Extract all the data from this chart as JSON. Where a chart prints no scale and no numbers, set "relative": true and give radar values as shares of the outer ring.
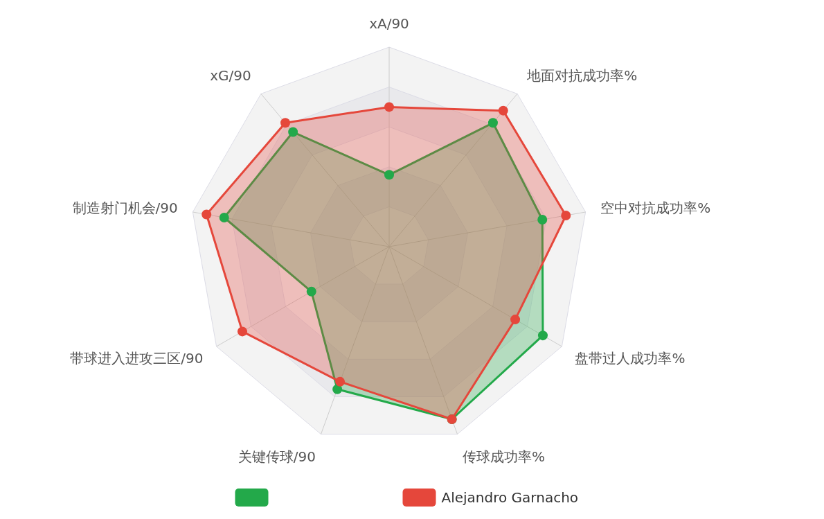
{
  "chart_data": {
    "type": "radar",
    "relative": true,
    "grid": true,
    "legend": "bottom",
    "marker": "circle",
    "categories": [
      "xA/90",
      "地面对抗成功率%",
      "空中对抗成功率%",
      "盘带过人成功率%",
      "传球成功率%",
      "关键传球/90",
      "带球进入进攻三区/90",
      "制造射门机会/90",
      "xG/90"
    ],
    "series": [
      {
        "color": "#23a94a",
        "values": [
          0.36,
          0.81,
          0.78,
          0.89,
          0.92,
          0.76,
          0.45,
          0.84,
          0.75
        ]
      },
      {
        "name": "Alejandro Garnacho",
        "color": "#e5473b",
        "values": [
          0.7,
          0.89,
          0.9,
          0.73,
          0.92,
          0.72,
          0.85,
          0.93,
          0.81
        ]
      }
    ]
  }
}
